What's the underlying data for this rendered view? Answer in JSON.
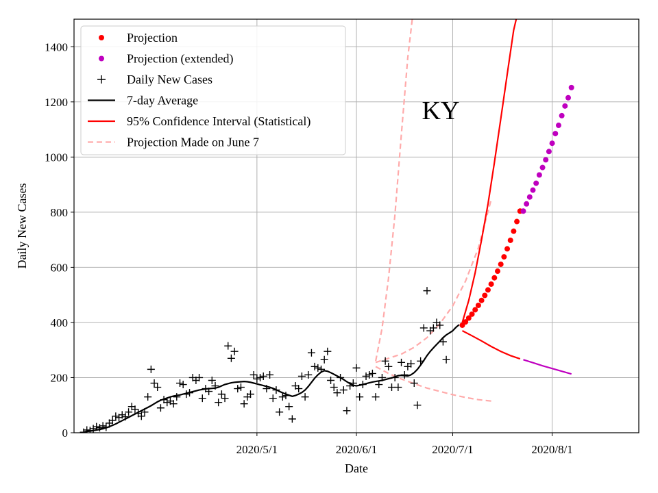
{
  "chart_data": {
    "type": "line",
    "title": "KY",
    "xlabel": "Date",
    "ylabel": "Daily New Cases",
    "ylim": [
      0,
      1500
    ],
    "x_start": "2020-03-08",
    "xlim_days": [
      -3,
      173
    ],
    "yticks": [
      0,
      200,
      400,
      600,
      800,
      1000,
      1200,
      1400
    ],
    "xticks": [
      {
        "label": "2020/5/1",
        "day": 54
      },
      {
        "label": "2020/6/1",
        "day": 85
      },
      {
        "label": "2020/7/1",
        "day": 115
      },
      {
        "label": "2020/8/1",
        "day": 146
      }
    ],
    "grid": true,
    "legend_position": "top-left",
    "legend": [
      {
        "label": "Projection",
        "kind": "dot",
        "color": "#ff0000"
      },
      {
        "label": "Projection (extended)",
        "kind": "dot",
        "color": "#bf00bf"
      },
      {
        "label": "Daily New Cases",
        "kind": "plus",
        "color": "#000000"
      },
      {
        "label": "7-day Average",
        "kind": "line",
        "color": "#000000"
      },
      {
        "label": "95% Confidence Interval (Statistical)",
        "kind": "line",
        "color": "#ff0000"
      },
      {
        "label": "Projection Made on June 7",
        "kind": "dashed",
        "color": "#ffaaaa"
      }
    ],
    "series": [
      {
        "name": "Daily New Cases",
        "x_start_day": 0,
        "values": [
          2,
          10,
          8,
          15,
          22,
          18,
          25,
          20,
          35,
          45,
          60,
          55,
          65,
          58,
          75,
          95,
          85,
          70,
          60,
          75,
          130,
          230,
          180,
          165,
          90,
          120,
          110,
          115,
          105,
          130,
          180,
          175,
          140,
          145,
          200,
          190,
          200,
          125,
          160,
          150,
          190,
          170,
          110,
          140,
          125,
          315,
          270,
          295,
          160,
          165,
          105,
          130,
          140,
          210,
          195,
          200,
          205,
          160,
          210,
          125,
          155,
          75,
          130,
          135,
          95,
          50,
          170,
          160,
          205,
          130,
          210,
          290,
          240,
          235,
          230,
          265,
          295,
          190,
          165,
          145,
          200,
          155,
          80,
          170,
          180,
          235,
          130,
          175,
          205,
          210,
          215,
          130,
          175,
          200,
          260,
          240,
          165,
          200,
          165,
          255,
          210,
          240,
          250,
          180,
          100,
          260,
          380,
          515,
          370,
          380,
          400,
          390,
          330,
          265
        ]
      },
      {
        "name": "7-day Average",
        "x_start_day": 0,
        "values": [
          2,
          5,
          6,
          8,
          10,
          12,
          15,
          18,
          22,
          27,
          32,
          38,
          44,
          50,
          56,
          62,
          68,
          74,
          80,
          86,
          92,
          98,
          105,
          112,
          118,
          122,
          126,
          130,
          133,
          135,
          137,
          140,
          143,
          146,
          149,
          152,
          155,
          157,
          159,
          160,
          161,
          162,
          165,
          170,
          175,
          178,
          181,
          183,
          184,
          185,
          186,
          185,
          183,
          180,
          177,
          174,
          171,
          168,
          165,
          161,
          156,
          150,
          145,
          140,
          136,
          132,
          135,
          140,
          146,
          155,
          168,
          183,
          198,
          210,
          220,
          225,
          223,
          218,
          212,
          206,
          200,
          193,
          185,
          178,
          172,
          170,
          172,
          175,
          178,
          181,
          184,
          186,
          188,
          190,
          193,
          196,
          199,
          203,
          207,
          208,
          207,
          206,
          210,
          218,
          230,
          245,
          262,
          280,
          295,
          308,
          320,
          332,
          345,
          355,
          362,
          370,
          382,
          392
        ]
      },
      {
        "name": "Projection",
        "x_start_day": 118,
        "values": [
          390,
          402,
          416,
          430,
          446,
          462,
          480,
          498,
          518,
          539,
          562,
          586,
          611,
          638,
          667,
          698,
          731,
          766,
          804
        ]
      },
      {
        "name": "Projection (extended)",
        "x_start_day": 137,
        "values": [
          804,
          830,
          855,
          880,
          905,
          935,
          962,
          990,
          1020,
          1050,
          1085,
          1115,
          1150,
          1185,
          1215,
          1252
        ]
      },
      {
        "name": "95% CI Upper",
        "x": [
          118,
          120,
          122,
          124,
          126,
          128,
          130,
          132,
          134,
          136
        ],
        "values": [
          400,
          480,
          580,
          700,
          830,
          980,
          1140,
          1300,
          1460,
          1560
        ]
      },
      {
        "name": "95% CI Lower",
        "x": [
          118,
          121,
          124,
          127,
          130,
          133,
          136
        ],
        "values": [
          370,
          352,
          333,
          313,
          295,
          280,
          268
        ]
      },
      {
        "name": "95% CI Lower (extended)",
        "x": [
          137,
          140,
          143,
          146,
          149,
          152
        ],
        "values": [
          265,
          254,
          243,
          233,
          223,
          213
        ]
      },
      {
        "name": "June 7 Projection Upper",
        "x": [
          91,
          93,
          95,
          97,
          99,
          101,
          103
        ],
        "values": [
          260,
          380,
          560,
          790,
          1080,
          1360,
          1560
        ]
      },
      {
        "name": "June 7 Projection Mid",
        "x": [
          91,
          95,
          99,
          103,
          107,
          111,
          115,
          119,
          123,
          127
        ],
        "values": [
          255,
          270,
          285,
          310,
          345,
          395,
          460,
          550,
          670,
          845
        ]
      },
      {
        "name": "June 7 Projection Lower",
        "x": [
          91,
          95,
          99,
          103,
          107,
          111,
          115,
          119,
          123,
          127
        ],
        "values": [
          240,
          215,
          195,
          178,
          162,
          150,
          138,
          128,
          120,
          115
        ]
      }
    ]
  }
}
